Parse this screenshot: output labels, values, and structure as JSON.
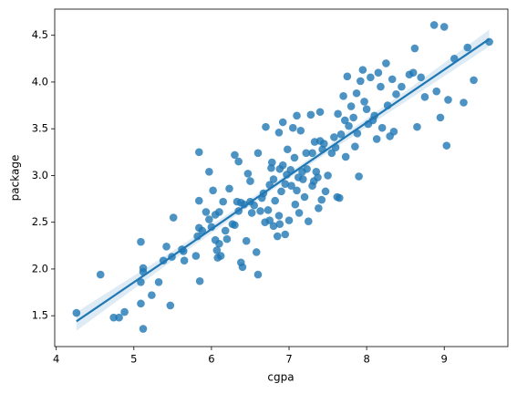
{
  "chart_data": {
    "type": "scatter",
    "xlabel": "cgpa",
    "ylabel": "package",
    "color": "#1f77b4",
    "xlim": [
      3.98,
      9.82
    ],
    "ylim": [
      1.17,
      4.78
    ],
    "xticks": [
      4,
      5,
      6,
      7,
      8,
      9
    ],
    "yticks": [
      1.5,
      {
        "value": 2.0,
        "label": "2.0"
      },
      2.5,
      {
        "value": 3.0,
        "label": "3.0"
      },
      3.5,
      {
        "value": 4.0,
        "label": "4.0"
      },
      4.5
    ],
    "x": [
      4.26,
      4.57,
      4.74,
      4.81,
      4.88,
      5.09,
      5.12,
      5.09,
      5.09,
      5.12,
      5.12,
      5.23,
      5.32,
      5.38,
      5.42,
      5.47,
      5.51,
      5.49,
      5.62,
      5.64,
      5.65,
      5.8,
      5.82,
      5.84,
      5.84,
      5.84,
      5.85,
      5.88,
      5.93,
      5.97,
      5.97,
      6.0,
      6.02,
      6.05,
      6.05,
      6.07,
      6.08,
      6.1,
      6.1,
      6.12,
      6.15,
      6.18,
      6.2,
      6.23,
      6.27,
      6.3,
      6.3,
      6.33,
      6.35,
      6.35,
      6.38,
      6.38,
      6.4,
      6.42,
      6.45,
      6.47,
      6.5,
      6.5,
      6.52,
      6.55,
      6.58,
      6.6,
      6.6,
      6.63,
      6.65,
      6.67,
      6.69,
      6.7,
      6.73,
      6.75,
      6.75,
      6.77,
      6.78,
      6.8,
      6.8,
      6.82,
      6.85,
      6.87,
      6.87,
      6.88,
      6.88,
      6.9,
      6.92,
      6.92,
      6.95,
      6.95,
      6.97,
      6.98,
      7.0,
      7.02,
      7.03,
      7.05,
      7.07,
      7.08,
      7.1,
      7.1,
      7.12,
      7.13,
      7.15,
      7.17,
      7.18,
      7.2,
      7.22,
      7.23,
      7.25,
      7.28,
      7.3,
      7.3,
      7.32,
      7.33,
      7.35,
      7.37,
      7.38,
      7.4,
      7.4,
      7.42,
      7.43,
      7.45,
      7.47,
      7.5,
      7.55,
      7.58,
      7.6,
      7.62,
      7.63,
      7.65,
      7.67,
      7.7,
      7.72,
      7.73,
      7.75,
      7.77,
      7.8,
      7.83,
      7.85,
      7.87,
      7.88,
      7.9,
      7.92,
      7.95,
      7.97,
      8.0,
      8.02,
      8.05,
      8.08,
      8.1,
      8.13,
      8.15,
      8.18,
      8.2,
      8.25,
      8.27,
      8.3,
      8.33,
      8.35,
      8.38,
      8.45,
      8.55,
      8.6,
      8.62,
      8.65,
      8.7,
      8.75,
      8.87,
      8.9,
      8.95,
      9.0,
      9.03,
      9.05,
      9.13,
      9.25,
      9.3,
      9.38,
      9.58
    ],
    "values": [
      1.53,
      1.94,
      1.48,
      1.48,
      1.54,
      1.63,
      1.36,
      2.29,
      1.86,
      1.97,
      2.01,
      1.72,
      1.86,
      2.09,
      2.24,
      1.61,
      2.55,
      2.13,
      2.21,
      2.19,
      2.09,
      2.14,
      2.35,
      2.44,
      2.73,
      3.25,
      1.87,
      2.41,
      2.61,
      3.04,
      2.53,
      2.45,
      2.84,
      2.58,
      2.31,
      2.2,
      2.12,
      2.27,
      2.61,
      2.14,
      2.72,
      2.41,
      2.32,
      2.86,
      2.48,
      3.22,
      2.47,
      2.72,
      3.15,
      2.62,
      2.07,
      2.71,
      2.02,
      2.69,
      2.3,
      3.02,
      2.94,
      2.72,
      2.6,
      2.68,
      2.18,
      3.24,
      1.94,
      2.62,
      2.76,
      2.81,
      2.5,
      3.52,
      2.63,
      2.52,
      2.9,
      3.08,
      3.14,
      2.96,
      2.46,
      2.73,
      2.35,
      2.57,
      3.46,
      3.07,
      2.48,
      2.83,
      3.57,
      3.11,
      2.91,
      2.37,
      3.01,
      3.28,
      2.52,
      3.06,
      2.89,
      3.51,
      3.19,
      2.69,
      2.84,
      3.64,
      2.98,
      2.6,
      3.48,
      3.04,
      2.96,
      2.77,
      3.24,
      3.07,
      2.51,
      3.65,
      3.24,
      2.89,
      2.94,
      3.36,
      3.04,
      2.98,
      2.65,
      3.37,
      3.68,
      2.74,
      3.28,
      3.34,
      2.83,
      3.0,
      3.24,
      3.41,
      3.3,
      2.77,
      3.66,
      2.76,
      3.44,
      3.85,
      3.59,
      3.2,
      4.06,
      3.53,
      3.74,
      3.62,
      3.31,
      3.88,
      3.45,
      2.99,
      4.01,
      4.13,
      3.79,
      3.71,
      3.55,
      4.05,
      3.59,
      3.64,
      3.39,
      4.1,
      3.95,
      3.51,
      4.2,
      3.75,
      3.42,
      4.03,
      3.47,
      3.87,
      3.95,
      4.08,
      4.1,
      4.36,
      3.52,
      4.05,
      3.84,
      4.61,
      3.9,
      3.62,
      4.59,
      3.32,
      3.81,
      4.25,
      3.78,
      4.37,
      4.02,
      4.43
    ],
    "regression": {
      "x": [
        4.26,
        5.5,
        7,
        8.5,
        9.58
      ],
      "y": [
        1.44,
        2.14,
        3.0,
        3.85,
        4.46
      ],
      "ci_lower": [
        1.34,
        2.09,
        2.97,
        3.79,
        4.38
      ],
      "ci_upper": [
        1.54,
        2.19,
        3.03,
        3.9,
        4.56
      ]
    }
  }
}
